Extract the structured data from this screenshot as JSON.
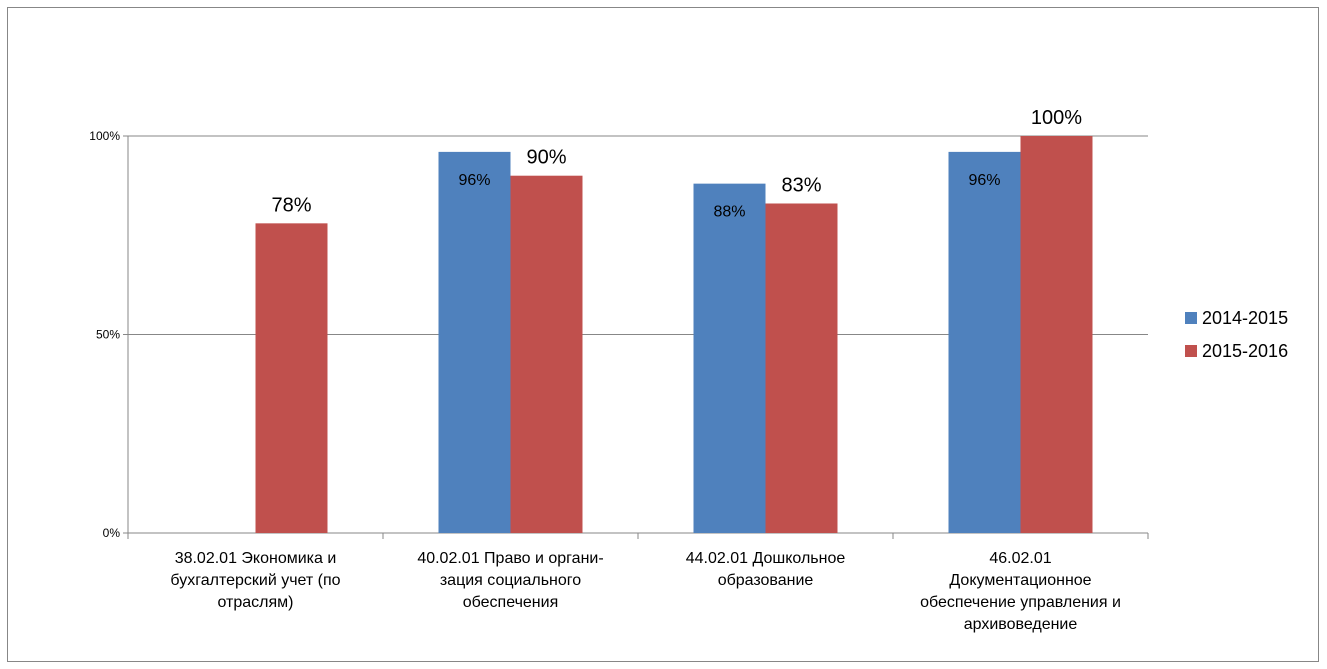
{
  "chart_data": {
    "type": "bar",
    "categories": [
      [
        "38.02.01 Экономика и",
        "бухгалтерский учет (по",
        "отраслям)"
      ],
      [
        "40.02.01 Право и органи-",
        "зация социального",
        "обеспечения"
      ],
      [
        "44.02.01  Дошкольное",
        "образование"
      ],
      [
        "46.02.01",
        "Документационное",
        "обеспечение управления и",
        "архивоведение"
      ]
    ],
    "series": [
      {
        "name": "2014-2015",
        "color": "#4f81bd",
        "values": [
          null,
          96,
          88,
          96
        ],
        "labels": [
          "",
          "96%",
          "88%",
          "96%"
        ]
      },
      {
        "name": "2015-2016",
        "color": "#c0504d",
        "values": [
          78,
          90,
          83,
          100
        ],
        "labels": [
          "78%",
          "90%",
          "83%",
          "100%"
        ]
      }
    ],
    "y_ticks": [
      {
        "value": 0,
        "label": "0%"
      },
      {
        "value": 50,
        "label": "50%"
      },
      {
        "value": 100,
        "label": "100%"
      }
    ],
    "ylim": [
      0,
      100
    ],
    "grid": true,
    "legend_position": "right",
    "title": "",
    "xlabel": "",
    "ylabel": ""
  }
}
